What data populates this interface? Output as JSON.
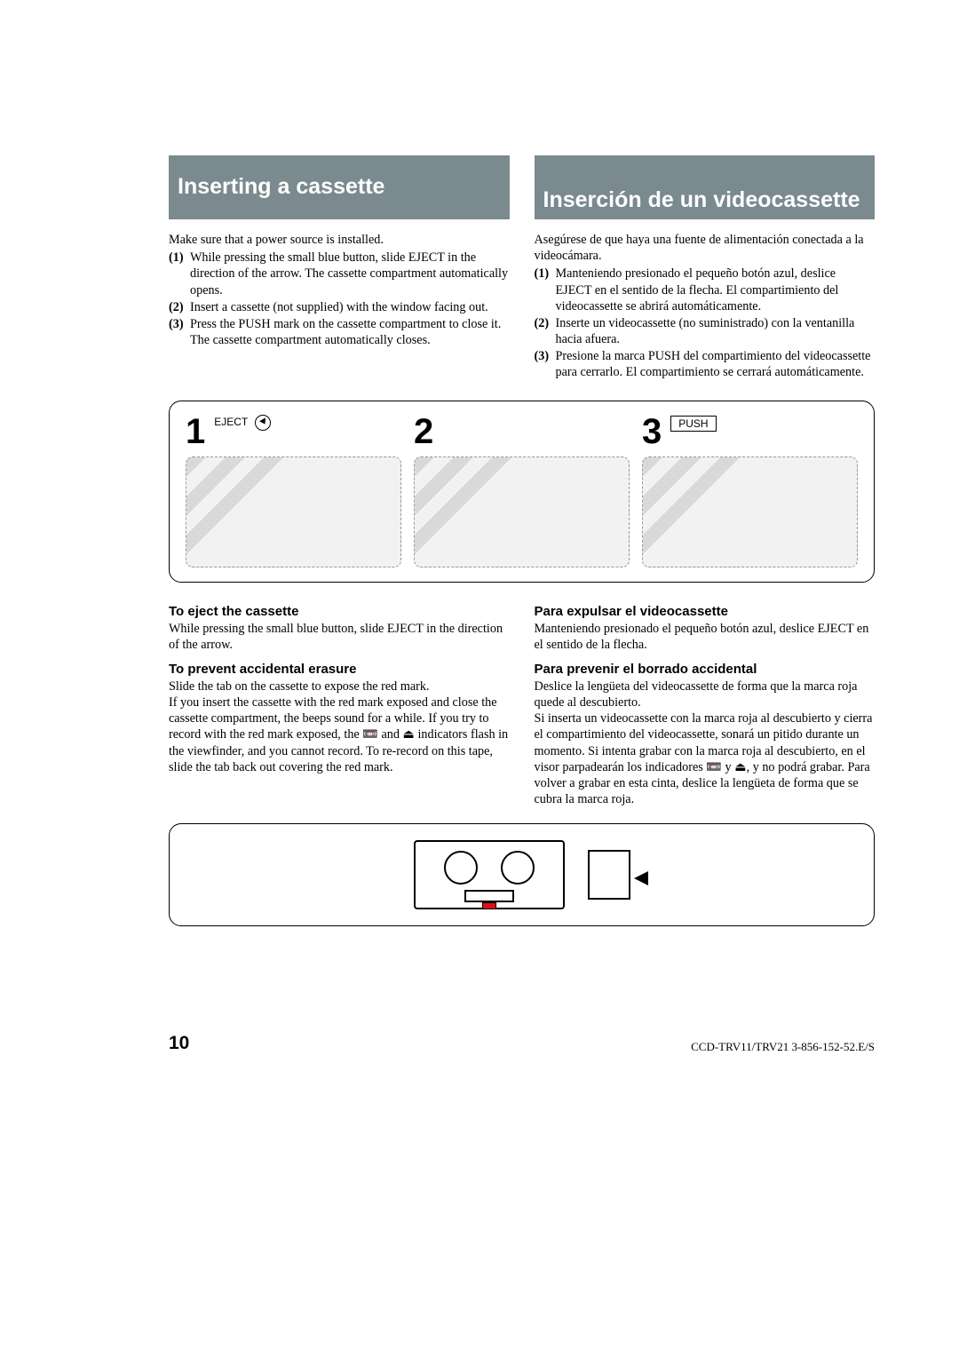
{
  "colors": {
    "header_bg": "#7a8a8f",
    "header_text": "#ffffff",
    "body_text": "#000000",
    "page_bg": "#ffffff",
    "red_mark": "#d11"
  },
  "typography": {
    "title_fontsize_pt": 19,
    "subhead_fontsize_pt": 11,
    "body_fontsize_pt": 10.5,
    "bignum_fontsize_pt": 30,
    "title_font": "Arial bold",
    "body_font": "serif"
  },
  "left": {
    "title": "Inserting a cassette",
    "intro": "Make sure that a power source is installed.",
    "steps": [
      {
        "n": "(1)",
        "t": "While pressing the small blue button, slide EJECT in the direction of the arrow. The cassette compartment automatically opens."
      },
      {
        "n": "(2)",
        "t": "Insert a cassette (not supplied) with the window facing out."
      },
      {
        "n": "(3)",
        "t": "Press the PUSH mark on the cassette compartment to close it. The cassette compartment automatically closes."
      }
    ],
    "eject_head": "To eject the cassette",
    "eject_body": "While pressing the small blue button, slide EJECT in the direction of the arrow.",
    "erase_head": "To prevent accidental erasure",
    "erase_body1": "Slide the tab on the cassette to expose the red mark.",
    "erase_body2a": "If you insert the cassette with the red mark exposed and close the cassette compartment, the beeps sound for a while. If you try to record with the red mark exposed, the ",
    "erase_sym1": "📼",
    "erase_body2b": " and ",
    "erase_sym2": "⏏",
    "erase_body2c": " indicators flash in the viewfinder, and you cannot record. To re-record on this tape, slide the tab back out covering the red mark."
  },
  "right": {
    "title": "Inserción de un videocassette",
    "intro": "Asegúrese de que haya una fuente de alimentación conectada a la videocámara.",
    "steps": [
      {
        "n": "(1)",
        "t": "Manteniendo presionado el pequeño botón azul, deslice EJECT en el sentido de la flecha. El compartimiento del videocassette se abrirá automáticamente."
      },
      {
        "n": "(2)",
        "t": "Inserte un videocassette (no suministrado) con la ventanilla hacia afuera."
      },
      {
        "n": "(3)",
        "t": "Presione la marca PUSH del compartimiento del videocassette para cerrarlo. El compartimiento se cerrará automáticamente."
      }
    ],
    "eject_head": "Para expulsar el videocassette",
    "eject_body": "Manteniendo presionado el pequeño botón azul, deslice EJECT en el sentido de la flecha.",
    "erase_head": "Para prevenir el borrado accidental",
    "erase_body1": "Deslice la lengüeta del videocassette de forma que la marca roja quede al descubierto.",
    "erase_body2a": "Si inserta un videocassette con la marca roja al descubierto y cierra el compartimiento del videocassette, sonará un pitido durante un momento. Si intenta grabar con la marca roja al descubierto, en el visor parpadearán los indicadores ",
    "erase_sym1": "📼",
    "erase_body2b": " y ",
    "erase_sym2": "⏏",
    "erase_body2c": ", y no podrá grabar.  Para volver a grabar en esta cinta, deslice la lengüeta de forma que se cubra la marca roja."
  },
  "diagram": {
    "labels": {
      "eject": "EJECT",
      "push": "PUSH"
    },
    "nums": [
      "1",
      "2",
      "3"
    ]
  },
  "footer": {
    "page": "10",
    "doc": "CCD-TRV11/TRV21  3-856-152-52.E/S"
  }
}
